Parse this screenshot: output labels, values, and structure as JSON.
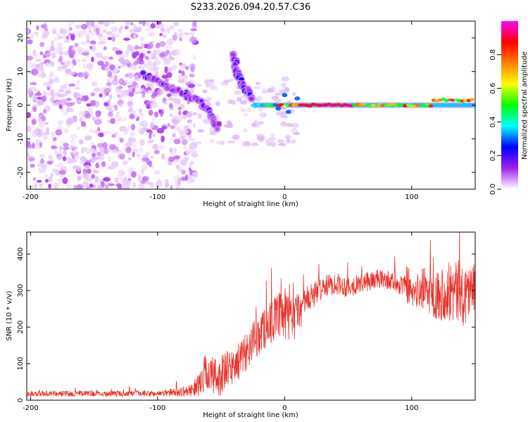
{
  "chart_data": [
    {
      "type": "heatmap",
      "title": "S233.2026.094.20.57.C36",
      "xlabel": "Height of straight line (km)",
      "ylabel": "Frequency (Hz)",
      "xlim": [
        -203,
        150
      ],
      "ylim": [
        -25,
        25
      ],
      "xticks": [
        -200,
        -100,
        0,
        100
      ],
      "yticks": [
        -20,
        -10,
        0,
        10,
        20
      ],
      "xtick_labels": [
        "-200",
        "-100",
        "0",
        "100"
      ],
      "ytick_labels": [
        "-20",
        "-10",
        "0",
        "10",
        "20"
      ],
      "colorbar": {
        "label": "Normalized spectral amplitude",
        "range": [
          0,
          1
        ],
        "ticks": [
          0,
          0.2,
          0.4,
          0.6,
          0.8
        ],
        "tick_labels": [
          "0.0",
          "0.2",
          "0.4",
          "0.6",
          "0.8"
        ],
        "colors": [
          "#ffffff",
          "#a020f0",
          "#0000ff",
          "#00ffff",
          "#00ff00",
          "#ffff00",
          "#ff8000",
          "#ff0000",
          "#ff00ff"
        ]
      },
      "features": [
        {
          "name": "scattered noise",
          "x_range": [
            -203,
            -70
          ],
          "freq_range": [
            -25,
            25
          ],
          "amplitude": 0.05
        },
        {
          "name": "upper arc",
          "points": [
            [
              -40,
              15
            ],
            [
              -38,
              10
            ],
            [
              -32,
              5
            ],
            [
              -25,
              2
            ]
          ],
          "amplitude": 0.2
        },
        {
          "name": "lower arc",
          "points": [
            [
              -110,
              9
            ],
            [
              -90,
              5
            ],
            [
              -70,
              2
            ],
            [
              -60,
              -2
            ],
            [
              -52,
              -7
            ]
          ],
          "amplitude": 0.15
        },
        {
          "name": "carrier line",
          "x_range": [
            -25,
            150
          ],
          "freq": 0,
          "amplitude": 0.95
        }
      ]
    },
    {
      "type": "line",
      "xlabel": "Height of straight line (km)",
      "ylabel": "SNR (10 * v/v)",
      "xlim": [
        -203,
        150
      ],
      "ylim": [
        0,
        460
      ],
      "xticks": [
        -200,
        -100,
        0,
        100
      ],
      "yticks": [
        0,
        100,
        200,
        300,
        400
      ],
      "xtick_labels": [
        "-200",
        "-100",
        "0",
        "100"
      ],
      "ytick_labels": [
        "0",
        "100",
        "200",
        "300",
        "400"
      ],
      "series": [
        {
          "name": "SNR",
          "color": "#e8332a",
          "x": [
            -203,
            -150,
            -100,
            -75,
            -68,
            -62,
            -55,
            -45,
            -35,
            -25,
            -15,
            -5,
            0,
            5,
            10,
            20,
            30,
            40,
            50,
            60,
            70,
            80,
            90,
            100,
            110,
            120,
            130,
            140,
            150
          ],
          "mean": [
            18,
            18,
            18,
            25,
            40,
            80,
            60,
            80,
            110,
            160,
            200,
            230,
            230,
            215,
            240,
            280,
            310,
            320,
            310,
            320,
            330,
            330,
            320,
            290,
            305,
            290,
            300,
            290,
            310
          ],
          "spread": [
            8,
            8,
            8,
            15,
            30,
            55,
            60,
            55,
            50,
            55,
            60,
            60,
            80,
            70,
            60,
            40,
            30,
            30,
            30,
            25,
            30,
            25,
            30,
            40,
            60,
            70,
            90,
            90,
            70
          ]
        }
      ]
    }
  ]
}
